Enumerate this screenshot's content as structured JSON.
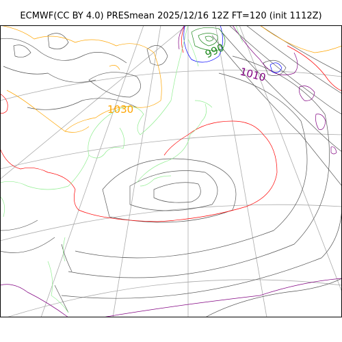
{
  "title": "ECMWF(CC BY 4.0) PRESmean 2025/12/16 12Z FT=120 (init 1112Z)",
  "contour_labels": {
    "high": "1030",
    "low_center": "990",
    "low_east": "1010"
  },
  "colors": {
    "isobar": "#555555",
    "coastline": "#90ee90",
    "graticule": "#aaaaaa",
    "isobar_1030": "#ffa500",
    "isobar_1020": "#ff0000",
    "isobar_1010": "#800080",
    "isobar_1000": "#0000ff",
    "isobar_990": "#228b22"
  }
}
